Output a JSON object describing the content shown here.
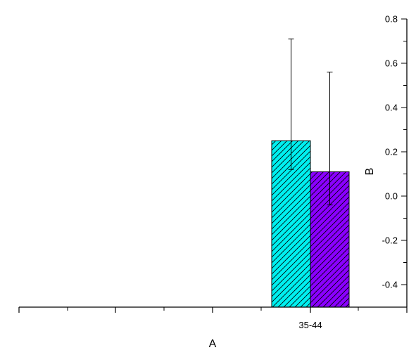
{
  "chart_data": {
    "type": "bar",
    "categories": [
      "35-44"
    ],
    "xlabel": "A",
    "ylabel": "B",
    "ylim": [
      -0.5,
      0.8
    ],
    "yticks": [
      0.8,
      0.6,
      0.4,
      0.2,
      0.0,
      -0.2,
      -0.4
    ],
    "ytick_labels": [
      "0.8",
      "0.6",
      "0.4",
      "0.2",
      "0.0",
      "-0.2",
      "-0.4"
    ],
    "y_axis_position": "right",
    "grid": false,
    "legend": "none",
    "bar_pattern": "diagonal-hatch",
    "series": [
      {
        "color": "#00f0f0",
        "values": [
          0.25
        ],
        "error_high": [
          0.71
        ],
        "error_low": [
          0.12
        ]
      },
      {
        "color": "#8a00ff",
        "values": [
          0.11
        ],
        "error_high": [
          0.56
        ],
        "error_low": [
          -0.04
        ]
      }
    ]
  }
}
